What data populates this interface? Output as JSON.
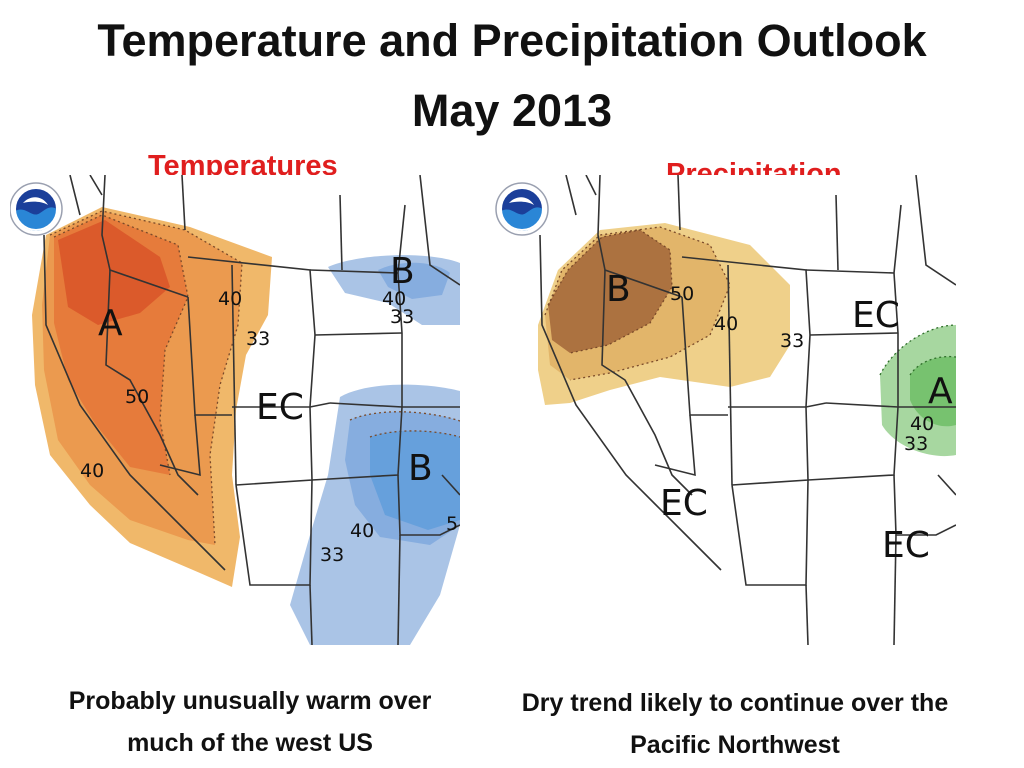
{
  "slide": {
    "title_line1": "Temperature and Precipitation Outlook",
    "title_line2": "May 2013"
  },
  "temperature_map": {
    "heading": "Temperatures",
    "logo": "noaa-logo",
    "labels": {
      "above": "A",
      "below_north": "B",
      "below_south": "B",
      "equal_chances": "EC",
      "p40_west": "40",
      "p33_west": "33",
      "p50_west": "50",
      "p40_southwest": "40",
      "p40_north": "40",
      "p33_north": "33",
      "p40_south": "40",
      "p33_south": "33",
      "p50_edge": "5"
    },
    "colors": {
      "above_33": "#f0b86a",
      "above_40": "#eb9a4f",
      "above_50": "#e67b3b",
      "above_60": "#db5a2b",
      "below_33": "#aac4e6",
      "below_40": "#86addf",
      "below_50": "#66a0dc"
    },
    "caption": "Probably unusually warm over much of the west US"
  },
  "precipitation_map": {
    "heading": "Precipitation",
    "logo": "noaa-logo",
    "labels": {
      "below": "B",
      "above": "A",
      "ec_north": "EC",
      "ec_southwest": "EC",
      "ec_southeast": "EC",
      "p50": "50",
      "p40": "40",
      "p33": "33",
      "p40_east": "40",
      "p33_east": "33"
    },
    "colors": {
      "below_33": "#efd08a",
      "below_40": "#e2b56a",
      "below_50": "#ac7240",
      "above_33": "#a7d7a0",
      "above_40": "#77c26f"
    },
    "caption": "Dry trend likely to continue over the Pacific Northwest"
  }
}
